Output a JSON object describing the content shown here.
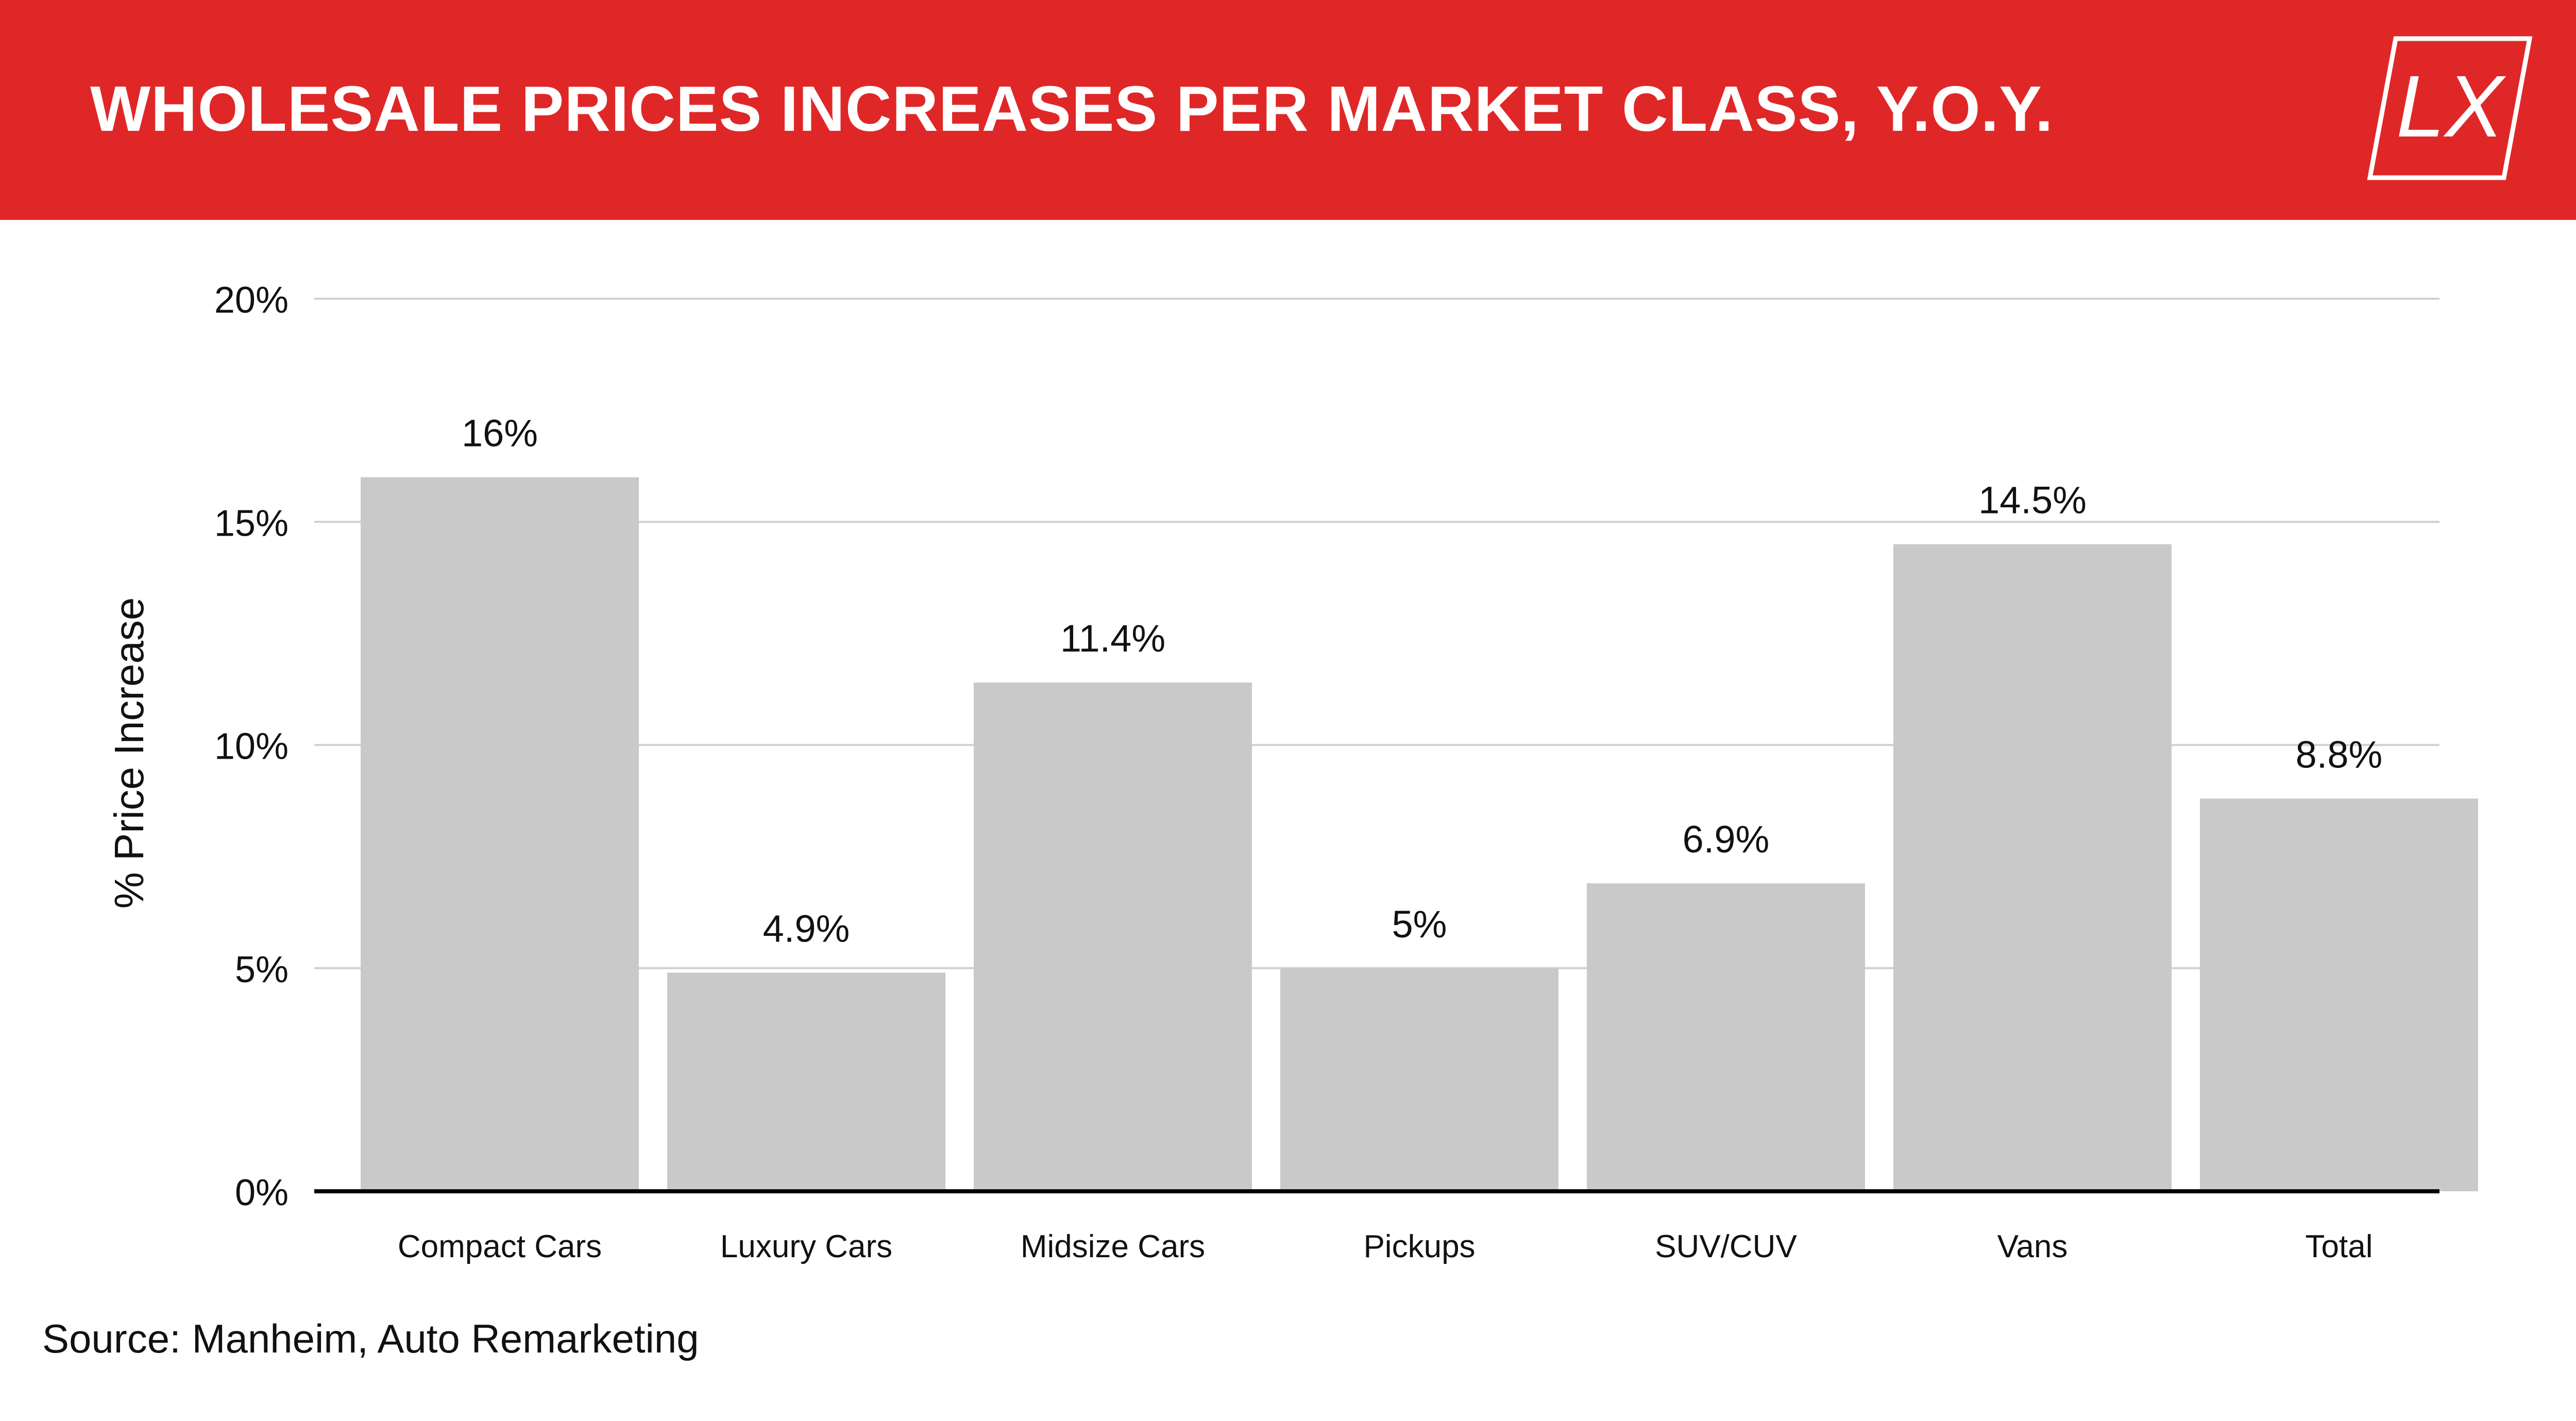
{
  "header": {
    "title": "WHOLESALE PRICES INCREASES PER MARKET CLASS, Y.O.Y.",
    "background_color": "#E02727",
    "logo_text": "LX"
  },
  "chart_data": {
    "type": "bar",
    "title": "WHOLESALE PRICES INCREASES PER MARKET CLASS, Y.O.Y.",
    "categories": [
      "Compact Cars",
      "Luxury Cars",
      "Midsize Cars",
      "Pickups",
      "SUV/CUV",
      "Vans",
      "Total"
    ],
    "values": [
      16,
      4.9,
      11.4,
      5,
      6.9,
      14.5,
      8.8
    ],
    "data_labels": [
      "16%",
      "4.9%",
      "11.4%",
      "5%",
      "6.9%",
      "14.5%",
      "8.8%"
    ],
    "xlabel": "",
    "ylabel": "% Price Increase",
    "ylim": [
      0,
      20
    ],
    "yticks": [
      0,
      5,
      10,
      15,
      20
    ],
    "ytick_labels": [
      "0%",
      "5%",
      "10%",
      "15%",
      "20%"
    ],
    "grid": true,
    "legend": "none",
    "bar_color": "#C9C9C9",
    "grid_color": "#D0D0D0",
    "axis_color": "#000000"
  },
  "footer": {
    "source": "Source: Manheim, Auto Remarketing"
  }
}
